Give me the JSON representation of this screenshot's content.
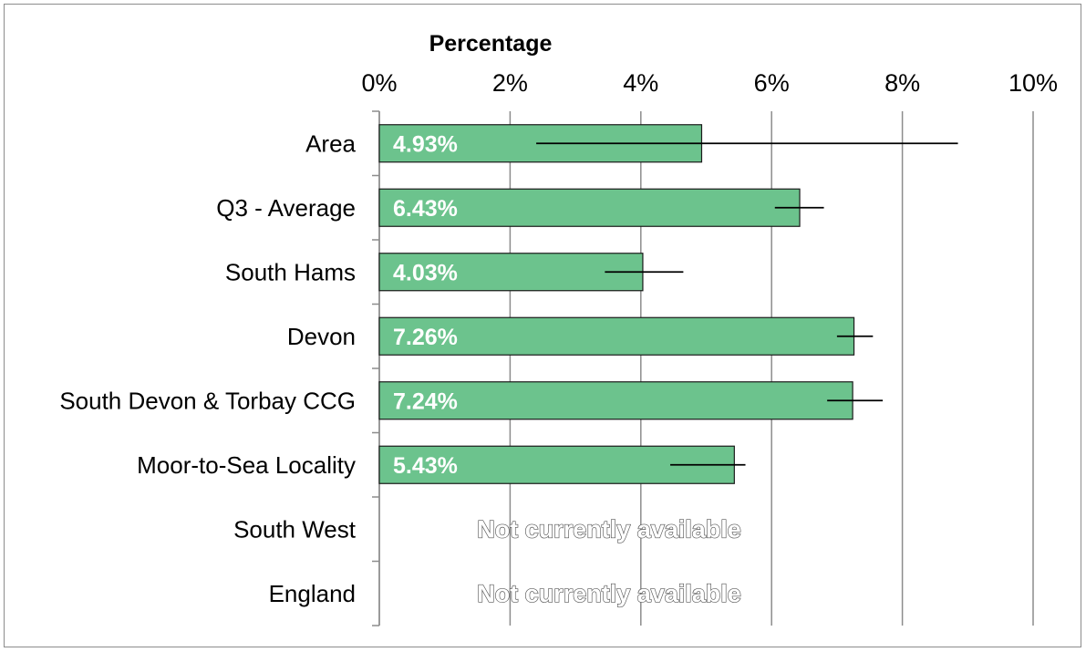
{
  "chart_data": {
    "type": "bar",
    "orientation": "horizontal",
    "title": "Percentage",
    "categories": [
      "Area",
      "Q3 - Average",
      "South Hams",
      "Devon",
      "South Devon & Torbay CCG",
      "Moor-to-Sea Locality",
      "South West",
      "England"
    ],
    "values": [
      4.93,
      6.43,
      4.03,
      7.26,
      7.24,
      5.43,
      null,
      null
    ],
    "data_labels": [
      "4.93%",
      "6.43%",
      "4.03%",
      "7.26%",
      "7.24%",
      "5.43%",
      "Not currently available",
      "Not currently available"
    ],
    "error_low": [
      2.4,
      6.05,
      3.45,
      7.0,
      6.85,
      4.45,
      null,
      null
    ],
    "error_high": [
      8.85,
      6.8,
      4.65,
      7.55,
      7.7,
      5.6,
      null,
      null
    ],
    "xlim": [
      0,
      10
    ],
    "ticks": [
      0,
      2,
      4,
      6,
      8,
      10
    ],
    "tick_labels": [
      "0%",
      "2%",
      "4%",
      "6%",
      "8%",
      "10%"
    ],
    "axis_position": "top",
    "grid": true,
    "colors": {
      "bar_fill": "#6cc38d",
      "bar_stroke": "#1a1a1a",
      "grid": "#8c8c8c",
      "error_bar": "#000000"
    }
  }
}
